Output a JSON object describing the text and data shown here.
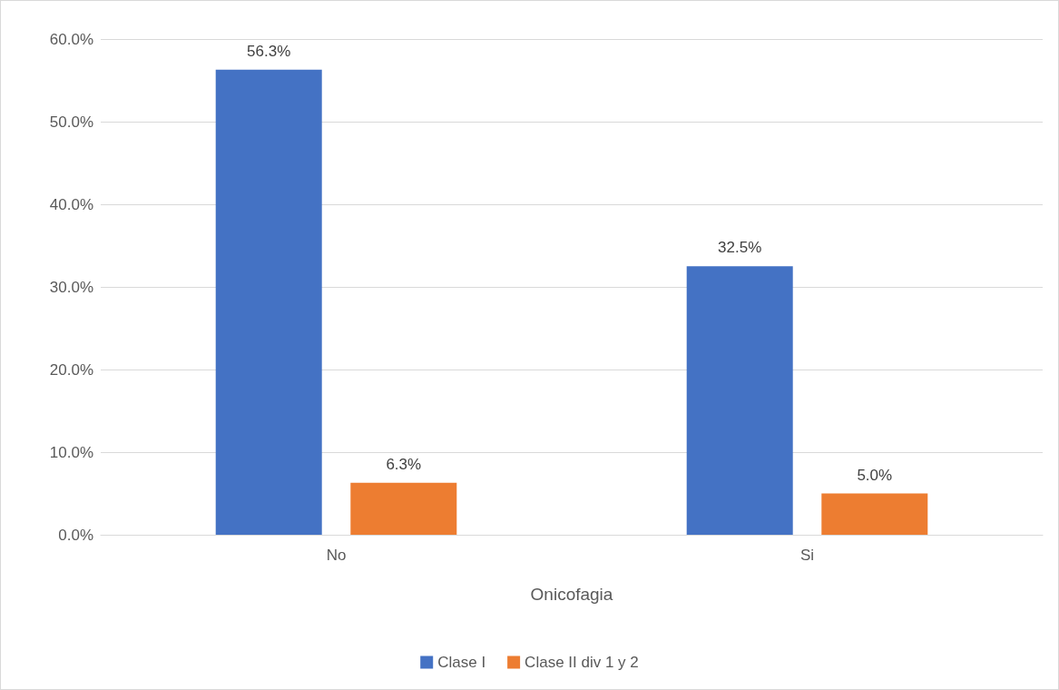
{
  "chart_data": {
    "type": "bar",
    "xlabel": "Onicofagia",
    "categories": [
      "No",
      "Si"
    ],
    "series": [
      {
        "name": "Clase I",
        "color": "#4472c4",
        "values": [
          56.3,
          32.5
        ],
        "value_labels": [
          "56.3%",
          "32.5%"
        ]
      },
      {
        "name": "Clase II div 1 y 2",
        "color": "#ed7d31",
        "values": [
          6.3,
          5.0
        ],
        "value_labels": [
          "6.3%",
          "5.0%"
        ]
      }
    ],
    "ylim": [
      0,
      60
    ],
    "yticks": [
      {
        "value": 0,
        "label": "0.0%"
      },
      {
        "value": 10,
        "label": "10.0%"
      },
      {
        "value": 20,
        "label": "20.0%"
      },
      {
        "value": 30,
        "label": "30.0%"
      },
      {
        "value": 40,
        "label": "40.0%"
      },
      {
        "value": 50,
        "label": "50.0%"
      },
      {
        "value": 60,
        "label": "60.0%"
      }
    ],
    "grid": "y",
    "legend": "bottom"
  }
}
